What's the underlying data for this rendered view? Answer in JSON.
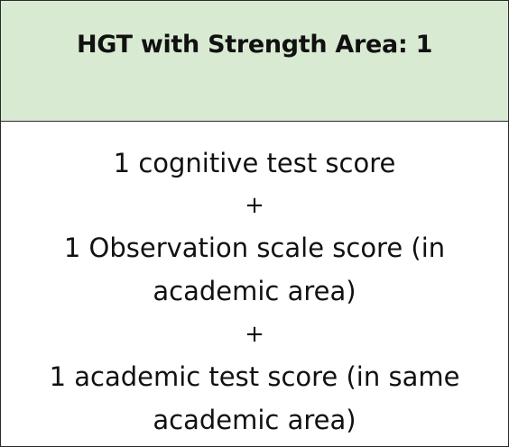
{
  "header": {
    "title": "HGT with Strength Area: 1"
  },
  "body": {
    "lines": [
      "1 cognitive test score",
      "+",
      "1 Observation scale score (in",
      "academic area)",
      "+",
      "1 academic test score (in same",
      "academic area)"
    ]
  },
  "colors": {
    "header_background": "#d9ead3",
    "border": "#2a2a2a",
    "text": "#111111"
  }
}
